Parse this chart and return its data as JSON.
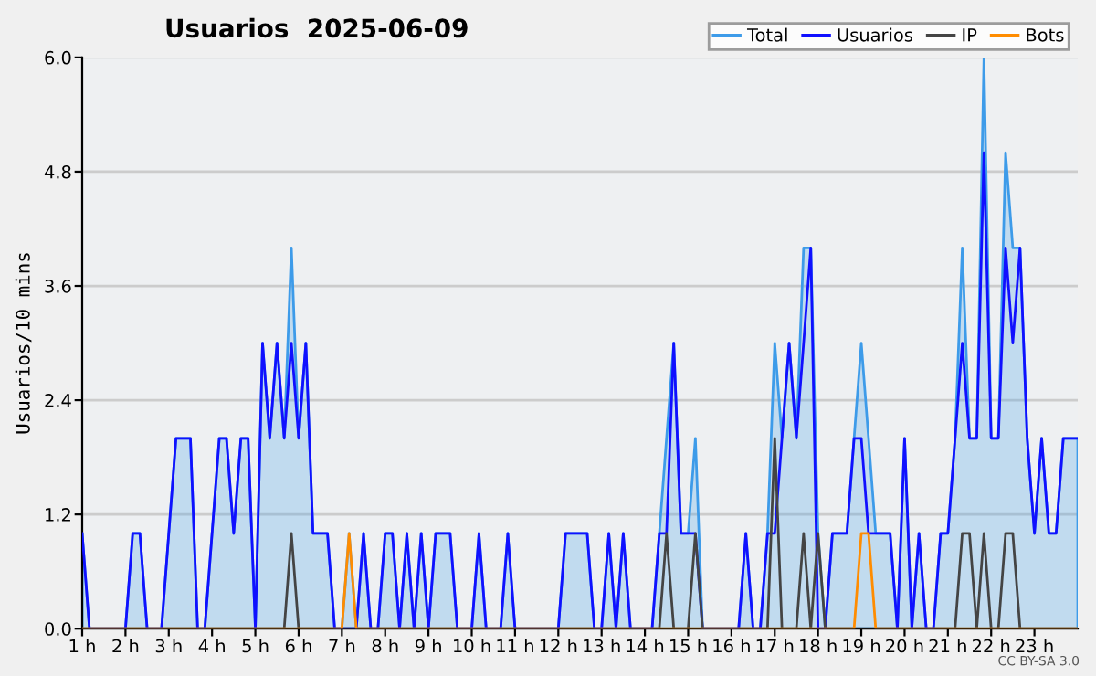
{
  "chart_data": {
    "type": "line",
    "title": "Usuarios  2025-06-09",
    "ylabel": "Usuarios/10 mins",
    "x": [
      1,
      1.167,
      1.333,
      1.5,
      1.667,
      1.833,
      2,
      2.167,
      2.333,
      2.5,
      2.667,
      2.833,
      3,
      3.167,
      3.333,
      3.5,
      3.667,
      3.833,
      4,
      4.167,
      4.333,
      4.5,
      4.667,
      4.833,
      5,
      5.167,
      5.333,
      5.5,
      5.667,
      5.833,
      6,
      6.167,
      6.333,
      6.5,
      6.667,
      6.833,
      7,
      7.167,
      7.333,
      7.5,
      7.667,
      7.833,
      8,
      8.167,
      8.333,
      8.5,
      8.667,
      8.833,
      9,
      9.167,
      9.333,
      9.5,
      9.667,
      9.833,
      10,
      10.167,
      10.333,
      10.5,
      10.667,
      10.833,
      11,
      11.167,
      11.333,
      11.5,
      11.667,
      11.833,
      12,
      12.167,
      12.333,
      12.5,
      12.667,
      12.833,
      13,
      13.167,
      13.333,
      13.5,
      13.667,
      13.833,
      14,
      14.167,
      14.333,
      14.5,
      14.667,
      14.833,
      15,
      15.167,
      15.333,
      15.5,
      15.667,
      15.833,
      16,
      16.167,
      16.333,
      16.5,
      16.667,
      16.833,
      17,
      17.167,
      17.333,
      17.5,
      17.667,
      17.833,
      18,
      18.167,
      18.333,
      18.5,
      18.667,
      18.833,
      19,
      19.167,
      19.333,
      19.5,
      19.667,
      19.833,
      20,
      20.167,
      20.333,
      20.5,
      20.667,
      20.833,
      21,
      21.167,
      21.333,
      21.5,
      21.667,
      21.833,
      22,
      22.167,
      22.333,
      22.5,
      22.667,
      22.833,
      23,
      23.167,
      23.333,
      23.5,
      23.667,
      23.833,
      24
    ],
    "series": [
      {
        "name": "Total",
        "type": "area",
        "color": "#3d9be9",
        "values": [
          1,
          0,
          0,
          0,
          0,
          0,
          0,
          1,
          1,
          0,
          0,
          0,
          1,
          2,
          2,
          2,
          0,
          0,
          1,
          2,
          2,
          1,
          2,
          2,
          0,
          3,
          2,
          3,
          2,
          4,
          2,
          3,
          1,
          1,
          1,
          0,
          0,
          1,
          0,
          1,
          0,
          0,
          1,
          1,
          0,
          1,
          0,
          1,
          0,
          1,
          1,
          1,
          0,
          0,
          0,
          1,
          0,
          0,
          0,
          1,
          0,
          0,
          0,
          0,
          0,
          0,
          0,
          1,
          1,
          1,
          1,
          0,
          0,
          1,
          0,
          1,
          0,
          0,
          0,
          0,
          1,
          2,
          3,
          1,
          1,
          2,
          0,
          0,
          0,
          0,
          0,
          0,
          1,
          0,
          0,
          1,
          3,
          2,
          3,
          2,
          4,
          4,
          1,
          0,
          1,
          1,
          1,
          2,
          3,
          2,
          1,
          1,
          1,
          0,
          2,
          0,
          1,
          0,
          0,
          1,
          1,
          2,
          4,
          2,
          2,
          6,
          2,
          2,
          5,
          4,
          4,
          2,
          1,
          2,
          1,
          1,
          2,
          2,
          2
        ]
      },
      {
        "name": "Usuarios",
        "color": "#1010ff",
        "values": [
          1,
          0,
          0,
          0,
          0,
          0,
          0,
          1,
          1,
          0,
          0,
          0,
          1,
          2,
          2,
          2,
          0,
          0,
          1,
          2,
          2,
          1,
          2,
          2,
          0,
          3,
          2,
          3,
          2,
          3,
          2,
          3,
          1,
          1,
          1,
          0,
          0,
          0,
          0,
          1,
          0,
          0,
          1,
          1,
          0,
          1,
          0,
          1,
          0,
          1,
          1,
          1,
          0,
          0,
          0,
          1,
          0,
          0,
          0,
          1,
          0,
          0,
          0,
          0,
          0,
          0,
          0,
          1,
          1,
          1,
          1,
          0,
          0,
          1,
          0,
          1,
          0,
          0,
          0,
          0,
          1,
          1,
          3,
          1,
          1,
          1,
          0,
          0,
          0,
          0,
          0,
          0,
          1,
          0,
          0,
          1,
          1,
          2,
          3,
          2,
          3,
          4,
          0,
          0,
          1,
          1,
          1,
          2,
          2,
          1,
          1,
          1,
          1,
          0,
          2,
          0,
          1,
          0,
          0,
          1,
          1,
          2,
          3,
          2,
          2,
          5,
          2,
          2,
          4,
          3,
          4,
          2,
          1,
          2,
          1,
          1,
          2,
          2,
          2
        ]
      },
      {
        "name": "IP",
        "color": "#444444",
        "values": [
          0,
          0,
          0,
          0,
          0,
          0,
          0,
          0,
          0,
          0,
          0,
          0,
          0,
          0,
          0,
          0,
          0,
          0,
          0,
          0,
          0,
          0,
          0,
          0,
          0,
          0,
          0,
          0,
          0,
          1,
          0,
          0,
          0,
          0,
          0,
          0,
          0,
          0,
          0,
          0,
          0,
          0,
          0,
          0,
          0,
          0,
          0,
          0,
          0,
          0,
          0,
          0,
          0,
          0,
          0,
          0,
          0,
          0,
          0,
          0,
          0,
          0,
          0,
          0,
          0,
          0,
          0,
          0,
          0,
          0,
          0,
          0,
          0,
          0,
          0,
          0,
          0,
          0,
          0,
          0,
          0,
          1,
          0,
          0,
          0,
          1,
          0,
          0,
          0,
          0,
          0,
          0,
          0,
          0,
          0,
          0,
          2,
          0,
          0,
          0,
          1,
          0,
          1,
          0,
          0,
          0,
          0,
          0,
          0,
          0,
          0,
          0,
          0,
          0,
          0,
          0,
          0,
          0,
          0,
          0,
          0,
          0,
          1,
          1,
          0,
          1,
          0,
          0,
          1,
          1,
          0,
          0,
          0,
          0,
          0,
          0,
          0,
          0,
          0
        ]
      },
      {
        "name": "Bots",
        "color": "#ff8c00",
        "values": [
          0,
          0,
          0,
          0,
          0,
          0,
          0,
          0,
          0,
          0,
          0,
          0,
          0,
          0,
          0,
          0,
          0,
          0,
          0,
          0,
          0,
          0,
          0,
          0,
          0,
          0,
          0,
          0,
          0,
          0,
          0,
          0,
          0,
          0,
          0,
          0,
          0,
          1,
          0,
          0,
          0,
          0,
          0,
          0,
          0,
          0,
          0,
          0,
          0,
          0,
          0,
          0,
          0,
          0,
          0,
          0,
          0,
          0,
          0,
          0,
          0,
          0,
          0,
          0,
          0,
          0,
          0,
          0,
          0,
          0,
          0,
          0,
          0,
          0,
          0,
          0,
          0,
          0,
          0,
          0,
          0,
          0,
          0,
          0,
          0,
          0,
          0,
          0,
          0,
          0,
          0,
          0,
          0,
          0,
          0,
          0,
          0,
          0,
          0,
          0,
          0,
          0,
          0,
          0,
          0,
          0,
          0,
          0,
          1,
          1,
          0,
          0,
          0,
          0,
          0,
          0,
          0,
          0,
          0,
          0,
          0,
          0,
          0,
          0,
          0,
          0,
          0,
          0,
          0,
          0,
          0,
          0,
          0,
          0,
          0,
          0,
          0,
          0,
          0
        ]
      }
    ],
    "xlim": [
      1,
      24
    ],
    "ylim": [
      0,
      6
    ],
    "xticks": [
      {
        "value": 1,
        "label": "1 h"
      },
      {
        "value": 2,
        "label": "2 h"
      },
      {
        "value": 3,
        "label": "3 h"
      },
      {
        "value": 4,
        "label": "4 h"
      },
      {
        "value": 5,
        "label": "5 h"
      },
      {
        "value": 6,
        "label": "6 h"
      },
      {
        "value": 7,
        "label": "7 h"
      },
      {
        "value": 8,
        "label": "8 h"
      },
      {
        "value": 9,
        "label": "9 h"
      },
      {
        "value": 10,
        "label": "10 h"
      },
      {
        "value": 11,
        "label": "11 h"
      },
      {
        "value": 12,
        "label": "12 h"
      },
      {
        "value": 13,
        "label": "13 h"
      },
      {
        "value": 14,
        "label": "14 h"
      },
      {
        "value": 15,
        "label": "15 h"
      },
      {
        "value": 16,
        "label": "16 h"
      },
      {
        "value": 17,
        "label": "17 h"
      },
      {
        "value": 18,
        "label": "18 h"
      },
      {
        "value": 19,
        "label": "19 h"
      },
      {
        "value": 20,
        "label": "20 h"
      },
      {
        "value": 21,
        "label": "21 h"
      },
      {
        "value": 22,
        "label": "22 h"
      },
      {
        "value": 23,
        "label": "23 h"
      }
    ],
    "yticks": [
      {
        "value": 0,
        "label": "0.0"
      },
      {
        "value": 1.2,
        "label": "1.2"
      },
      {
        "value": 2.4,
        "label": "2.4"
      },
      {
        "value": 3.6,
        "label": "3.6"
      },
      {
        "value": 4.8,
        "label": "4.8"
      },
      {
        "value": 6,
        "label": "6.0"
      }
    ],
    "grid": "y",
    "legend": "top right",
    "marker": "none",
    "line_style": "solid",
    "annotations": [
      "CC BY-SA 3.0"
    ]
  }
}
